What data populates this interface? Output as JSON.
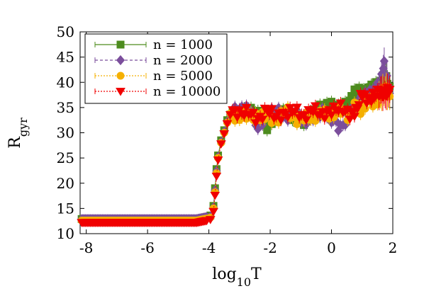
{
  "chart_data": {
    "type": "scatter",
    "title": "",
    "xlabel": {
      "base": "log",
      "sub": "10",
      "rest": "T"
    },
    "ylabel": {
      "base": "R",
      "sub": "gyr"
    },
    "xlim": [
      -8.2,
      2.0
    ],
    "ylim": [
      10,
      50
    ],
    "x_ticks": [
      "-8",
      "-6",
      "-4",
      "-2",
      "0",
      "2"
    ],
    "y_ticks": [
      "10",
      "15",
      "20",
      "25",
      "30",
      "35",
      "40",
      "45",
      "50"
    ],
    "grid": false,
    "legend_position": "top-left",
    "colors": {
      "n1000": "#4d8c1e",
      "n2000": "#7b4e9c",
      "n5000": "#f5b000",
      "n10000": "#f00000"
    },
    "series": [
      {
        "name": "n = 1000",
        "marker": "square",
        "line": "solid",
        "low_value": 12.9,
        "transition": [
          [
            -3.95,
            13.6
          ],
          [
            -3.85,
            15.5
          ],
          [
            -3.8,
            19.0
          ],
          [
            -3.75,
            22.8
          ],
          [
            -3.7,
            25.5
          ],
          [
            -3.6,
            28.5
          ],
          [
            -3.5,
            30.5
          ],
          [
            -3.4,
            32.5
          ]
        ],
        "plateau": [
          [
            -3.3,
            33.6
          ],
          [
            -3.0,
            33.9
          ],
          [
            -2.7,
            34.2
          ],
          [
            -2.4,
            33.8
          ],
          [
            -2.1,
            31.2
          ],
          [
            -1.8,
            33.2
          ],
          [
            -1.5,
            34.6
          ],
          [
            -1.2,
            32.6
          ],
          [
            -0.9,
            32.4
          ],
          [
            -0.6,
            33.8
          ],
          [
            -0.3,
            35.0
          ],
          [
            0.0,
            35.6
          ],
          [
            0.3,
            34.4
          ],
          [
            0.6,
            36.2
          ],
          [
            0.8,
            38.5
          ],
          [
            1.0,
            37.6
          ],
          [
            1.2,
            38.6
          ],
          [
            1.4,
            39.0
          ],
          [
            1.6,
            39.6
          ],
          [
            1.75,
            40.8
          ],
          [
            1.9,
            39.2
          ]
        ]
      },
      {
        "name": "n = 2000",
        "marker": "diamond",
        "line": "dashed",
        "low_value": 12.9,
        "transition": [
          [
            -3.95,
            13.4
          ],
          [
            -3.85,
            15.2
          ],
          [
            -3.8,
            18.6
          ],
          [
            -3.75,
            22.4
          ],
          [
            -3.7,
            25.2
          ],
          [
            -3.6,
            28.2
          ],
          [
            -3.5,
            30.2
          ],
          [
            -3.4,
            32.2
          ]
        ],
        "plateau": [
          [
            -3.3,
            34.0
          ],
          [
            -3.0,
            34.6
          ],
          [
            -2.7,
            34.8
          ],
          [
            -2.4,
            31.0
          ],
          [
            -2.1,
            33.8
          ],
          [
            -1.8,
            34.4
          ],
          [
            -1.5,
            33.0
          ],
          [
            -1.2,
            34.2
          ],
          [
            -0.9,
            32.0
          ],
          [
            -0.6,
            33.4
          ],
          [
            -0.3,
            34.0
          ],
          [
            0.0,
            32.8
          ],
          [
            0.3,
            30.8
          ],
          [
            0.6,
            33.6
          ],
          [
            0.8,
            35.4
          ],
          [
            1.0,
            36.8
          ],
          [
            1.2,
            37.6
          ],
          [
            1.4,
            38.4
          ],
          [
            1.6,
            39.8
          ],
          [
            1.72,
            43.6
          ],
          [
            1.9,
            37.8
          ]
        ]
      },
      {
        "name": "n = 5000",
        "marker": "circle",
        "line": "dotted",
        "low_value": 12.6,
        "transition": [
          [
            -3.95,
            13.2
          ],
          [
            -3.85,
            15.0
          ],
          [
            -3.8,
            18.2
          ],
          [
            -3.75,
            22.0
          ],
          [
            -3.7,
            25.0
          ],
          [
            -3.6,
            28.0
          ],
          [
            -3.5,
            30.0
          ],
          [
            -3.4,
            32.0
          ]
        ],
        "plateau": [
          [
            -3.3,
            33.2
          ],
          [
            -3.0,
            33.0
          ],
          [
            -2.7,
            33.8
          ],
          [
            -2.4,
            33.0
          ],
          [
            -2.1,
            33.4
          ],
          [
            -1.8,
            32.2
          ],
          [
            -1.5,
            34.8
          ],
          [
            -1.2,
            32.4
          ],
          [
            -0.9,
            33.2
          ],
          [
            -0.6,
            32.8
          ],
          [
            -0.3,
            34.2
          ],
          [
            0.0,
            33.2
          ],
          [
            0.3,
            34.6
          ],
          [
            0.6,
            33.0
          ],
          [
            0.8,
            35.8
          ],
          [
            1.0,
            34.2
          ],
          [
            1.2,
            37.0
          ],
          [
            1.4,
            35.6
          ],
          [
            1.6,
            37.4
          ],
          [
            1.75,
            38.8
          ],
          [
            1.9,
            37.2
          ]
        ]
      },
      {
        "name": "n = 10000",
        "marker": "triangle-down",
        "line": "dotted",
        "low_value": 12.2,
        "transition": [
          [
            -3.95,
            12.8
          ],
          [
            -3.85,
            14.4
          ],
          [
            -3.8,
            17.6
          ],
          [
            -3.75,
            21.4
          ],
          [
            -3.7,
            24.6
          ],
          [
            -3.6,
            27.8
          ],
          [
            -3.5,
            29.8
          ],
          [
            -3.4,
            31.8
          ]
        ],
        "plateau": [
          [
            -3.3,
            34.4
          ],
          [
            -3.0,
            33.8
          ],
          [
            -2.7,
            34.2
          ],
          [
            -2.4,
            32.4
          ],
          [
            -2.1,
            34.6
          ],
          [
            -1.8,
            33.2
          ],
          [
            -1.5,
            33.6
          ],
          [
            -1.2,
            34.6
          ],
          [
            -0.9,
            33.0
          ],
          [
            -0.6,
            34.8
          ],
          [
            -0.3,
            33.4
          ],
          [
            0.0,
            34.4
          ],
          [
            0.3,
            35.0
          ],
          [
            0.6,
            33.6
          ],
          [
            0.8,
            34.2
          ],
          [
            1.0,
            37.8
          ],
          [
            1.2,
            36.4
          ],
          [
            1.4,
            37.4
          ],
          [
            1.6,
            38.2
          ],
          [
            1.75,
            37.6
          ],
          [
            1.9,
            38.6
          ]
        ]
      }
    ]
  }
}
